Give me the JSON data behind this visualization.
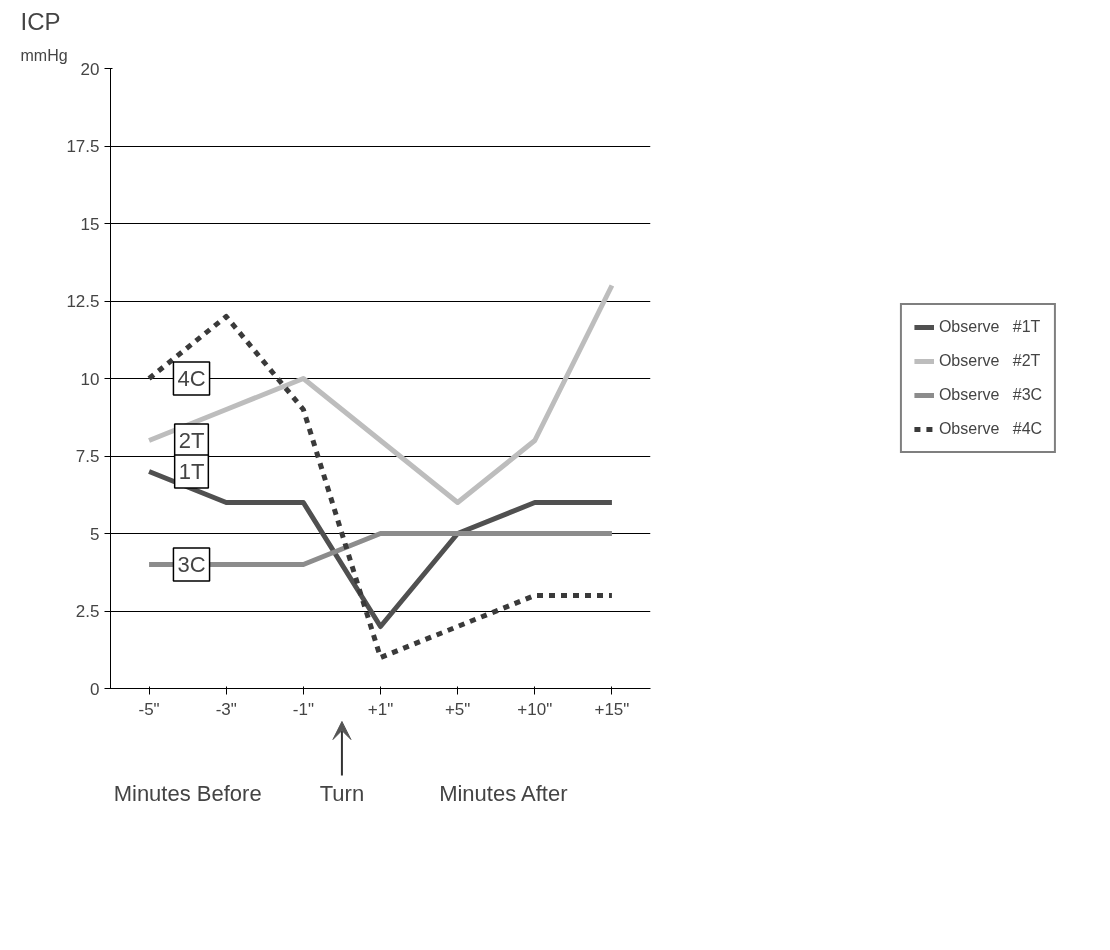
{
  "chart_data": {
    "type": "line",
    "title": "ICP",
    "ylabel": "mmHg",
    "categories": [
      "-5\"",
      "-3\"",
      "-1\"",
      "+1\"",
      "+5\"",
      "+10\"",
      "+15\""
    ],
    "series": [
      {
        "name": "Observe   #1T",
        "color": "#505050",
        "values": [
          7,
          6,
          6,
          2,
          5,
          6,
          6
        ]
      },
      {
        "name": "Observe   #2T",
        "color": "#bdbdbd",
        "values": [
          8,
          9,
          10,
          8,
          6,
          8,
          13
        ]
      },
      {
        "name": "Observe   #3C",
        "color": "#8c8c8c",
        "values": [
          4,
          4,
          4,
          5,
          5,
          5,
          5
        ]
      },
      {
        "name": "Observe   #4C",
        "color": "#3a3a3a",
        "values": [
          10,
          12,
          9,
          1,
          2,
          3,
          3
        ],
        "line_style": "dashed"
      }
    ],
    "ylim": [
      0,
      20
    ],
    "yticks": [
      0,
      2.5,
      5,
      7.5,
      10,
      12.5,
      15,
      17.5,
      20
    ],
    "grid": "y",
    "legend": "right",
    "marker": "none",
    "annotations": [
      {
        "text": "4C",
        "x": "-5\"",
        "y": 10
      },
      {
        "text": "2T",
        "x": "-5\"",
        "y": 8
      },
      {
        "text": "1T",
        "x": "-5\"",
        "y": 7
      },
      {
        "text": "3C",
        "x": "-5\"",
        "y": 4
      },
      "Minutes Before",
      "Turn",
      "Minutes After"
    ]
  }
}
